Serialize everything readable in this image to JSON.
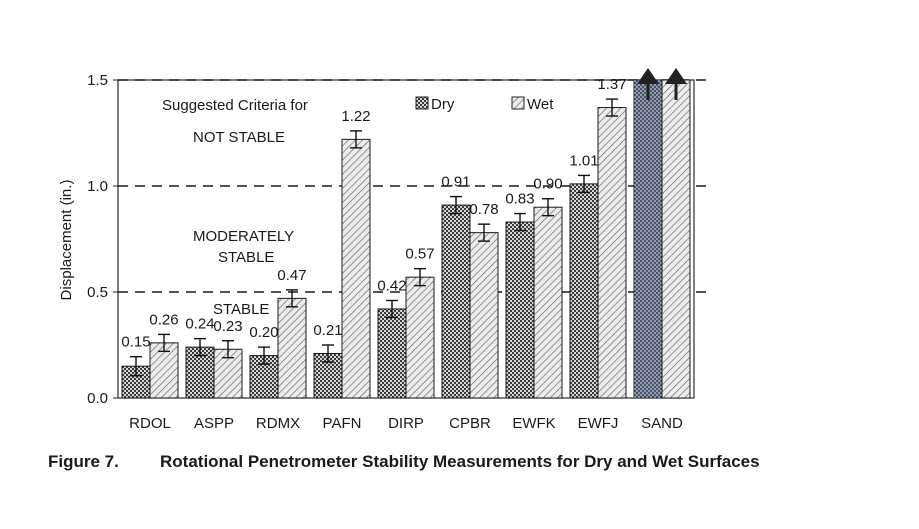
{
  "chart_data": {
    "type": "bar",
    "ylabel": "Displacement (in.)",
    "ylim": [
      0,
      1.5
    ],
    "yticks": [
      "0.0",
      "0.5",
      "1.0",
      "1.5"
    ],
    "categories": [
      "RDOL",
      "ASPP",
      "RDMX",
      "PAFN",
      "DIRP",
      "CPBR",
      "EWFK",
      "EWFJ",
      "SAND"
    ],
    "series": [
      {
        "name": "Dry",
        "values": [
          0.15,
          0.24,
          0.2,
          0.21,
          0.42,
          0.91,
          0.83,
          1.01,
          1.5
        ],
        "labels": [
          "0.15",
          "0.24",
          "0.20",
          "0.21",
          "0.42",
          "0.91",
          "0.83",
          "1.01",
          ""
        ],
        "errors": [
          0.045,
          0.04,
          0.04,
          0.04,
          0.04,
          0.04,
          0.04,
          0.04,
          0
        ]
      },
      {
        "name": "Wet",
        "values": [
          0.26,
          0.23,
          0.47,
          1.22,
          0.57,
          0.78,
          0.9,
          1.37,
          1.5
        ],
        "labels": [
          "0.26",
          "0.23",
          "0.47",
          "1.22",
          "0.57",
          "0.78",
          "0.90",
          "1.37",
          ""
        ],
        "errors": [
          0.04,
          0.04,
          0.04,
          0.04,
          0.04,
          0.04,
          0.04,
          0.04,
          0
        ]
      }
    ],
    "offscale_category": "SAND",
    "thresholds": [
      0.5,
      1.0,
      1.5
    ],
    "legend": {
      "dry": "Dry",
      "wet": "Wet"
    },
    "annotations": {
      "suggested": "Suggested Criteria for",
      "not_stable": "NOT STABLE",
      "moderately_1": "MODERATELY",
      "moderately_2": "STABLE",
      "stable": "STABLE"
    }
  },
  "caption": {
    "number": "Figure 7.",
    "text": "Rotational Penetrometer Stability Measurements for Dry and Wet Surfaces"
  }
}
